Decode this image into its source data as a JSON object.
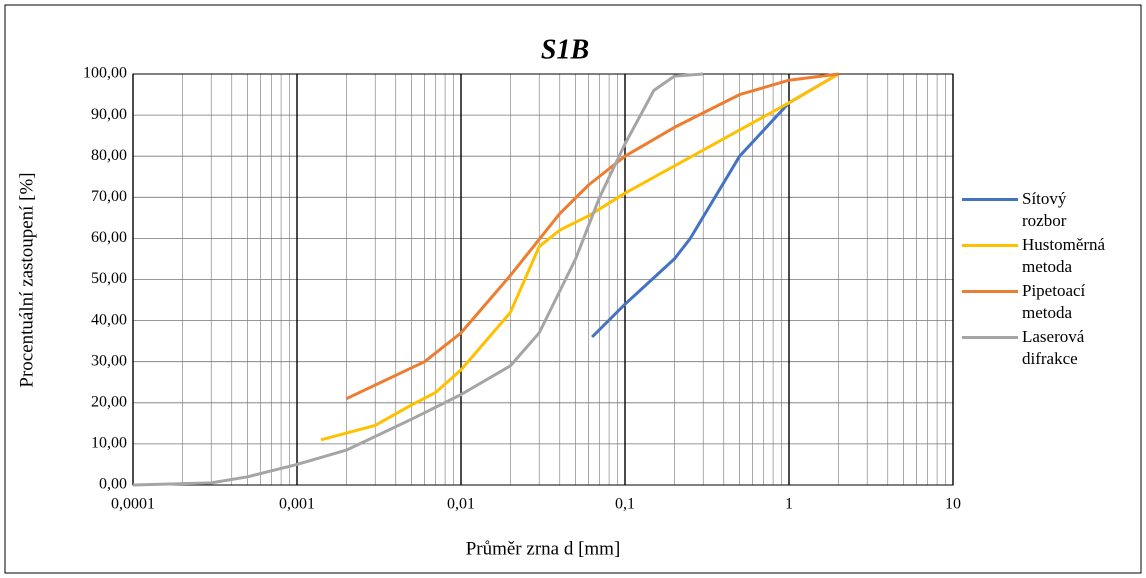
{
  "chart_data": {
    "type": "line",
    "title": "S1B",
    "x_label": "Průměr zrna d [mm]",
    "y_label": "Procentuální zastoupení [%]",
    "xscale": "log",
    "grid": true,
    "legend": "right",
    "xlim": [
      0.0001,
      10
    ],
    "xticks": [
      {
        "value": 0.0001,
        "label": "0,0001"
      },
      {
        "value": 0.001,
        "label": "0,001"
      },
      {
        "value": 0.01,
        "label": "0,01"
      },
      {
        "value": 0.1,
        "label": "0,1"
      },
      1,
      10
    ],
    "ylim": [
      0,
      100
    ],
    "yticks": [
      {
        "value": 0,
        "label": "0,00"
      },
      {
        "value": 10,
        "label": "10,00"
      },
      {
        "value": 20,
        "label": "20,00"
      },
      {
        "value": 30,
        "label": "30,00"
      },
      {
        "value": 40,
        "label": "40,00"
      },
      {
        "value": 50,
        "label": "50,00"
      },
      {
        "value": 60,
        "label": "60,00"
      },
      {
        "value": 70,
        "label": "70,00"
      },
      {
        "value": 80,
        "label": "80,00"
      },
      {
        "value": 90,
        "label": "90,00"
      },
      {
        "value": 100,
        "label": "100,00"
      }
    ],
    "series": [
      {
        "name": "Sítový rozbor",
        "color": "#4472c4",
        "x": [
          0.063,
          0.1,
          0.2,
          0.25,
          0.5,
          1,
          2
        ],
        "values": [
          36,
          44,
          55,
          60,
          80,
          93,
          100
        ]
      },
      {
        "name": "Hustoměrná metoda",
        "color": "#ffc000",
        "x": [
          0.0014,
          0.003,
          0.005,
          0.007,
          0.01,
          0.02,
          0.03,
          0.04,
          0.06,
          0.1,
          1,
          2
        ],
        "values": [
          11,
          14.5,
          19.5,
          22.5,
          28,
          42,
          58,
          62,
          65.5,
          71,
          93,
          100
        ]
      },
      {
        "name": "Pipetoací metoda",
        "color": "#ed7d31",
        "x": [
          0.002,
          0.006,
          0.01,
          0.02,
          0.04,
          0.06,
          0.1,
          0.2,
          0.5,
          1,
          2
        ],
        "values": [
          21,
          30,
          37,
          51,
          66,
          73,
          80,
          87,
          95,
          98.5,
          100
        ]
      },
      {
        "name": "Laserová difrakce",
        "color": "#a5a5a5",
        "x": [
          0.0001,
          0.0003,
          0.0005,
          0.001,
          0.002,
          0.005,
          0.01,
          0.02,
          0.03,
          0.05,
          0.07,
          0.1,
          0.15,
          0.2,
          0.3
        ],
        "values": [
          0,
          0.5,
          2,
          5,
          8.5,
          16,
          22,
          29,
          37,
          55,
          70,
          83,
          96,
          99.5,
          100
        ]
      }
    ]
  }
}
